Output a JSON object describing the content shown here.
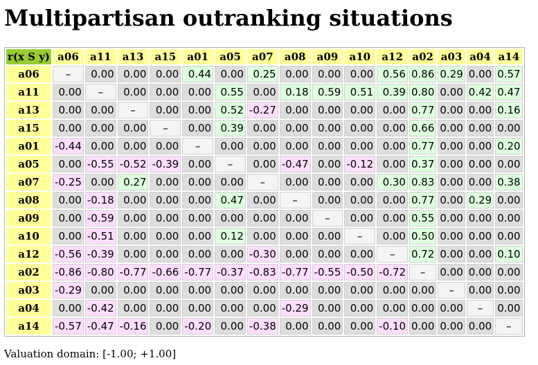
{
  "title": "Multipartisan outranking situations",
  "corner_label": "r(x S y)",
  "columns": [
    "a06",
    "a11",
    "a13",
    "a15",
    "a01",
    "a05",
    "a07",
    "a08",
    "a09",
    "a10",
    "a12",
    "a02",
    "a03",
    "a04",
    "a14"
  ],
  "rows": [
    {
      "label": "a06",
      "values": [
        "–",
        "0.00",
        "0.00",
        "0.00",
        "0.44",
        "0.00",
        "0.25",
        "0.00",
        "0.00",
        "0.00",
        "0.56",
        "0.86",
        "0.29",
        "0.00",
        "0.57"
      ]
    },
    {
      "label": "a11",
      "values": [
        "0.00",
        "–",
        "0.00",
        "0.00",
        "0.00",
        "0.55",
        "0.00",
        "0.18",
        "0.59",
        "0.51",
        "0.39",
        "0.80",
        "0.00",
        "0.42",
        "0.47"
      ]
    },
    {
      "label": "a13",
      "values": [
        "0.00",
        "0.00",
        "–",
        "0.00",
        "0.00",
        "0.52",
        "-0.27",
        "0.00",
        "0.00",
        "0.00",
        "0.00",
        "0.77",
        "0.00",
        "0.00",
        "0.16"
      ]
    },
    {
      "label": "a15",
      "values": [
        "0.00",
        "0.00",
        "0.00",
        "–",
        "0.00",
        "0.39",
        "0.00",
        "0.00",
        "0.00",
        "0.00",
        "0.00",
        "0.66",
        "0.00",
        "0.00",
        "0.00"
      ]
    },
    {
      "label": "a01",
      "values": [
        "-0.44",
        "0.00",
        "0.00",
        "0.00",
        "–",
        "0.00",
        "0.00",
        "0.00",
        "0.00",
        "0.00",
        "0.00",
        "0.77",
        "0.00",
        "0.00",
        "0.20"
      ]
    },
    {
      "label": "a05",
      "values": [
        "0.00",
        "-0.55",
        "-0.52",
        "-0.39",
        "0.00",
        "–",
        "0.00",
        "-0.47",
        "0.00",
        "-0.12",
        "0.00",
        "0.37",
        "0.00",
        "0.00",
        "0.00"
      ]
    },
    {
      "label": "a07",
      "values": [
        "-0.25",
        "0.00",
        "0.27",
        "0.00",
        "0.00",
        "0.00",
        "–",
        "0.00",
        "0.00",
        "0.00",
        "0.30",
        "0.83",
        "0.00",
        "0.00",
        "0.38"
      ]
    },
    {
      "label": "a08",
      "values": [
        "0.00",
        "-0.18",
        "0.00",
        "0.00",
        "0.00",
        "0.47",
        "0.00",
        "–",
        "0.00",
        "0.00",
        "0.00",
        "0.77",
        "0.00",
        "0.29",
        "0.00"
      ]
    },
    {
      "label": "a09",
      "values": [
        "0.00",
        "-0.59",
        "0.00",
        "0.00",
        "0.00",
        "0.00",
        "0.00",
        "0.00",
        "–",
        "0.00",
        "0.00",
        "0.55",
        "0.00",
        "0.00",
        "0.00"
      ]
    },
    {
      "label": "a10",
      "values": [
        "0.00",
        "-0.51",
        "0.00",
        "0.00",
        "0.00",
        "0.12",
        "0.00",
        "0.00",
        "0.00",
        "–",
        "0.00",
        "0.50",
        "0.00",
        "0.00",
        "0.00"
      ]
    },
    {
      "label": "a12",
      "values": [
        "-0.56",
        "-0.39",
        "0.00",
        "0.00",
        "0.00",
        "0.00",
        "-0.30",
        "0.00",
        "0.00",
        "0.00",
        "–",
        "0.72",
        "0.00",
        "0.00",
        "0.10"
      ]
    },
    {
      "label": "a02",
      "values": [
        "-0.86",
        "-0.80",
        "-0.77",
        "-0.66",
        "-0.77",
        "-0.37",
        "-0.83",
        "-0.77",
        "-0.55",
        "-0.50",
        "-0.72",
        "–",
        "0.00",
        "0.00",
        "0.00"
      ]
    },
    {
      "label": "a03",
      "values": [
        "-0.29",
        "0.00",
        "0.00",
        "0.00",
        "0.00",
        "0.00",
        "0.00",
        "0.00",
        "0.00",
        "0.00",
        "0.00",
        "0.00",
        "–",
        "0.00",
        "0.00"
      ]
    },
    {
      "label": "a04",
      "values": [
        "0.00",
        "-0.42",
        "0.00",
        "0.00",
        "0.00",
        "0.00",
        "0.00",
        "-0.29",
        "0.00",
        "0.00",
        "0.00",
        "0.00",
        "0.00",
        "–",
        "0.00"
      ]
    },
    {
      "label": "a14",
      "values": [
        "-0.57",
        "-0.47",
        "-0.16",
        "0.00",
        "-0.20",
        "0.00",
        "-0.38",
        "0.00",
        "0.00",
        "0.00",
        "-0.10",
        "0.00",
        "0.00",
        "0.00",
        "–"
      ]
    }
  ],
  "footer": "Valuation domain: [-1.00; +1.00]",
  "colors": {
    "header_bg": "#ffff99",
    "corner_bg": "#99cc33",
    "positive_bg": "#ddffdd",
    "negative_bg": "#ffddff",
    "zero_bg": "#dddddd",
    "diagonal_bg": "#f4f4f4"
  }
}
